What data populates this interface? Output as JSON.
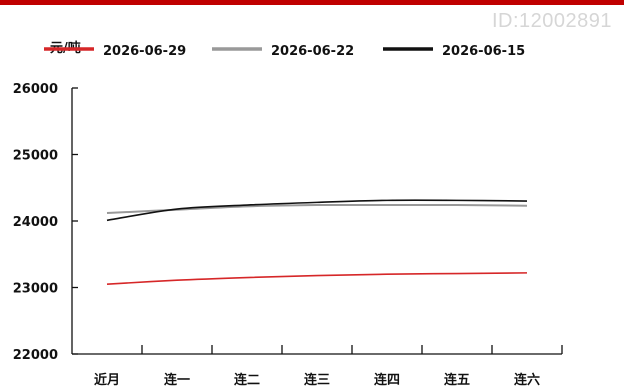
{
  "watermark": "ID:12002891",
  "colors": {
    "accent_bar": "#c00000"
  },
  "chart_data": {
    "type": "line",
    "title": "",
    "xlabel": "",
    "ylabel": "元/吨",
    "categories": [
      "近月",
      "连一",
      "连二",
      "连三",
      "连四",
      "连五",
      "连六"
    ],
    "ylim": [
      22000,
      26000
    ],
    "yticks": [
      22000,
      23000,
      24000,
      25000,
      26000
    ],
    "grid": false,
    "legend_position": "top",
    "series": [
      {
        "name": "2026-06-29",
        "color": "#d62728",
        "values": [
          23050,
          23110,
          23150,
          23180,
          23200,
          23210,
          23220
        ]
      },
      {
        "name": "2026-06-22",
        "color": "#999999",
        "values": [
          24120,
          24170,
          24220,
          24240,
          24240,
          24240,
          24230
        ]
      },
      {
        "name": "2026-06-15",
        "color": "#111111",
        "values": [
          24010,
          24180,
          24240,
          24280,
          24310,
          24310,
          24300
        ]
      }
    ]
  }
}
